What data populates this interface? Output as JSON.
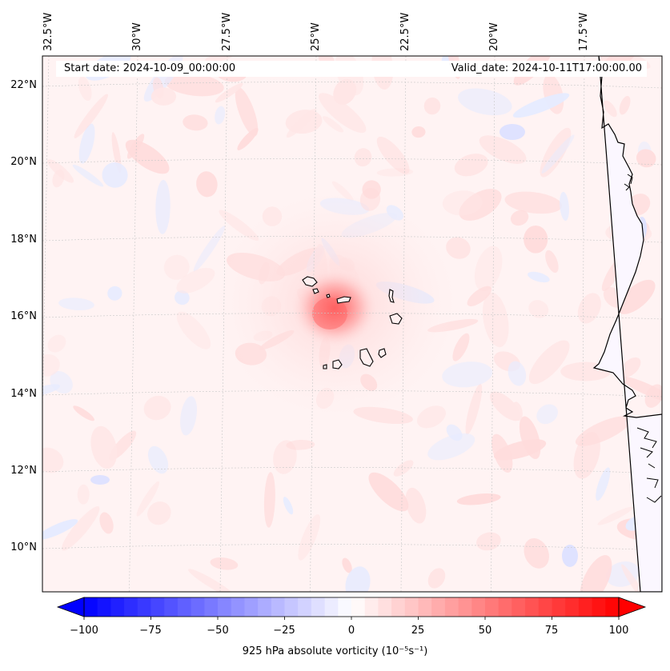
{
  "header": {
    "start_date": "Start date: 2024-10-09_00:00:00",
    "valid_date": "Valid_date: 2024-10-11T17:00:00.00"
  },
  "longitude_labels": [
    "32.5°W",
    "30°W",
    "27.5°W",
    "25°W",
    "22.5°W",
    "20°W",
    "17.5°W"
  ],
  "latitude_labels": [
    "22°N",
    "20°N",
    "18°N",
    "16°N",
    "14°N",
    "12°N",
    "10°N"
  ],
  "colorbar": {
    "tick_labels": [
      "−100",
      "−75",
      "−50",
      "−25",
      "0",
      "25",
      "50",
      "75",
      "100"
    ],
    "title": "925 hPa absolute vorticity (10⁻⁵s⁻¹)",
    "min": -100,
    "max": 100,
    "step": 5,
    "neg_color": "#0000ff",
    "pos_color": "#ff0000",
    "extend": "both"
  },
  "map": {
    "lon_range": [
      -33,
      -16
    ],
    "lat_range": [
      9,
      22.8
    ],
    "vortex_center": {
      "lon": -24.4,
      "lat": 16.1,
      "peak_vorticity": 60
    },
    "background_vorticity": 8,
    "islands": [
      "Santo Antão",
      "São Vicente",
      "São Nicolau",
      "Sal",
      "Boa Vista",
      "Maio",
      "Santiago",
      "Fogo",
      "Brava"
    ]
  }
}
